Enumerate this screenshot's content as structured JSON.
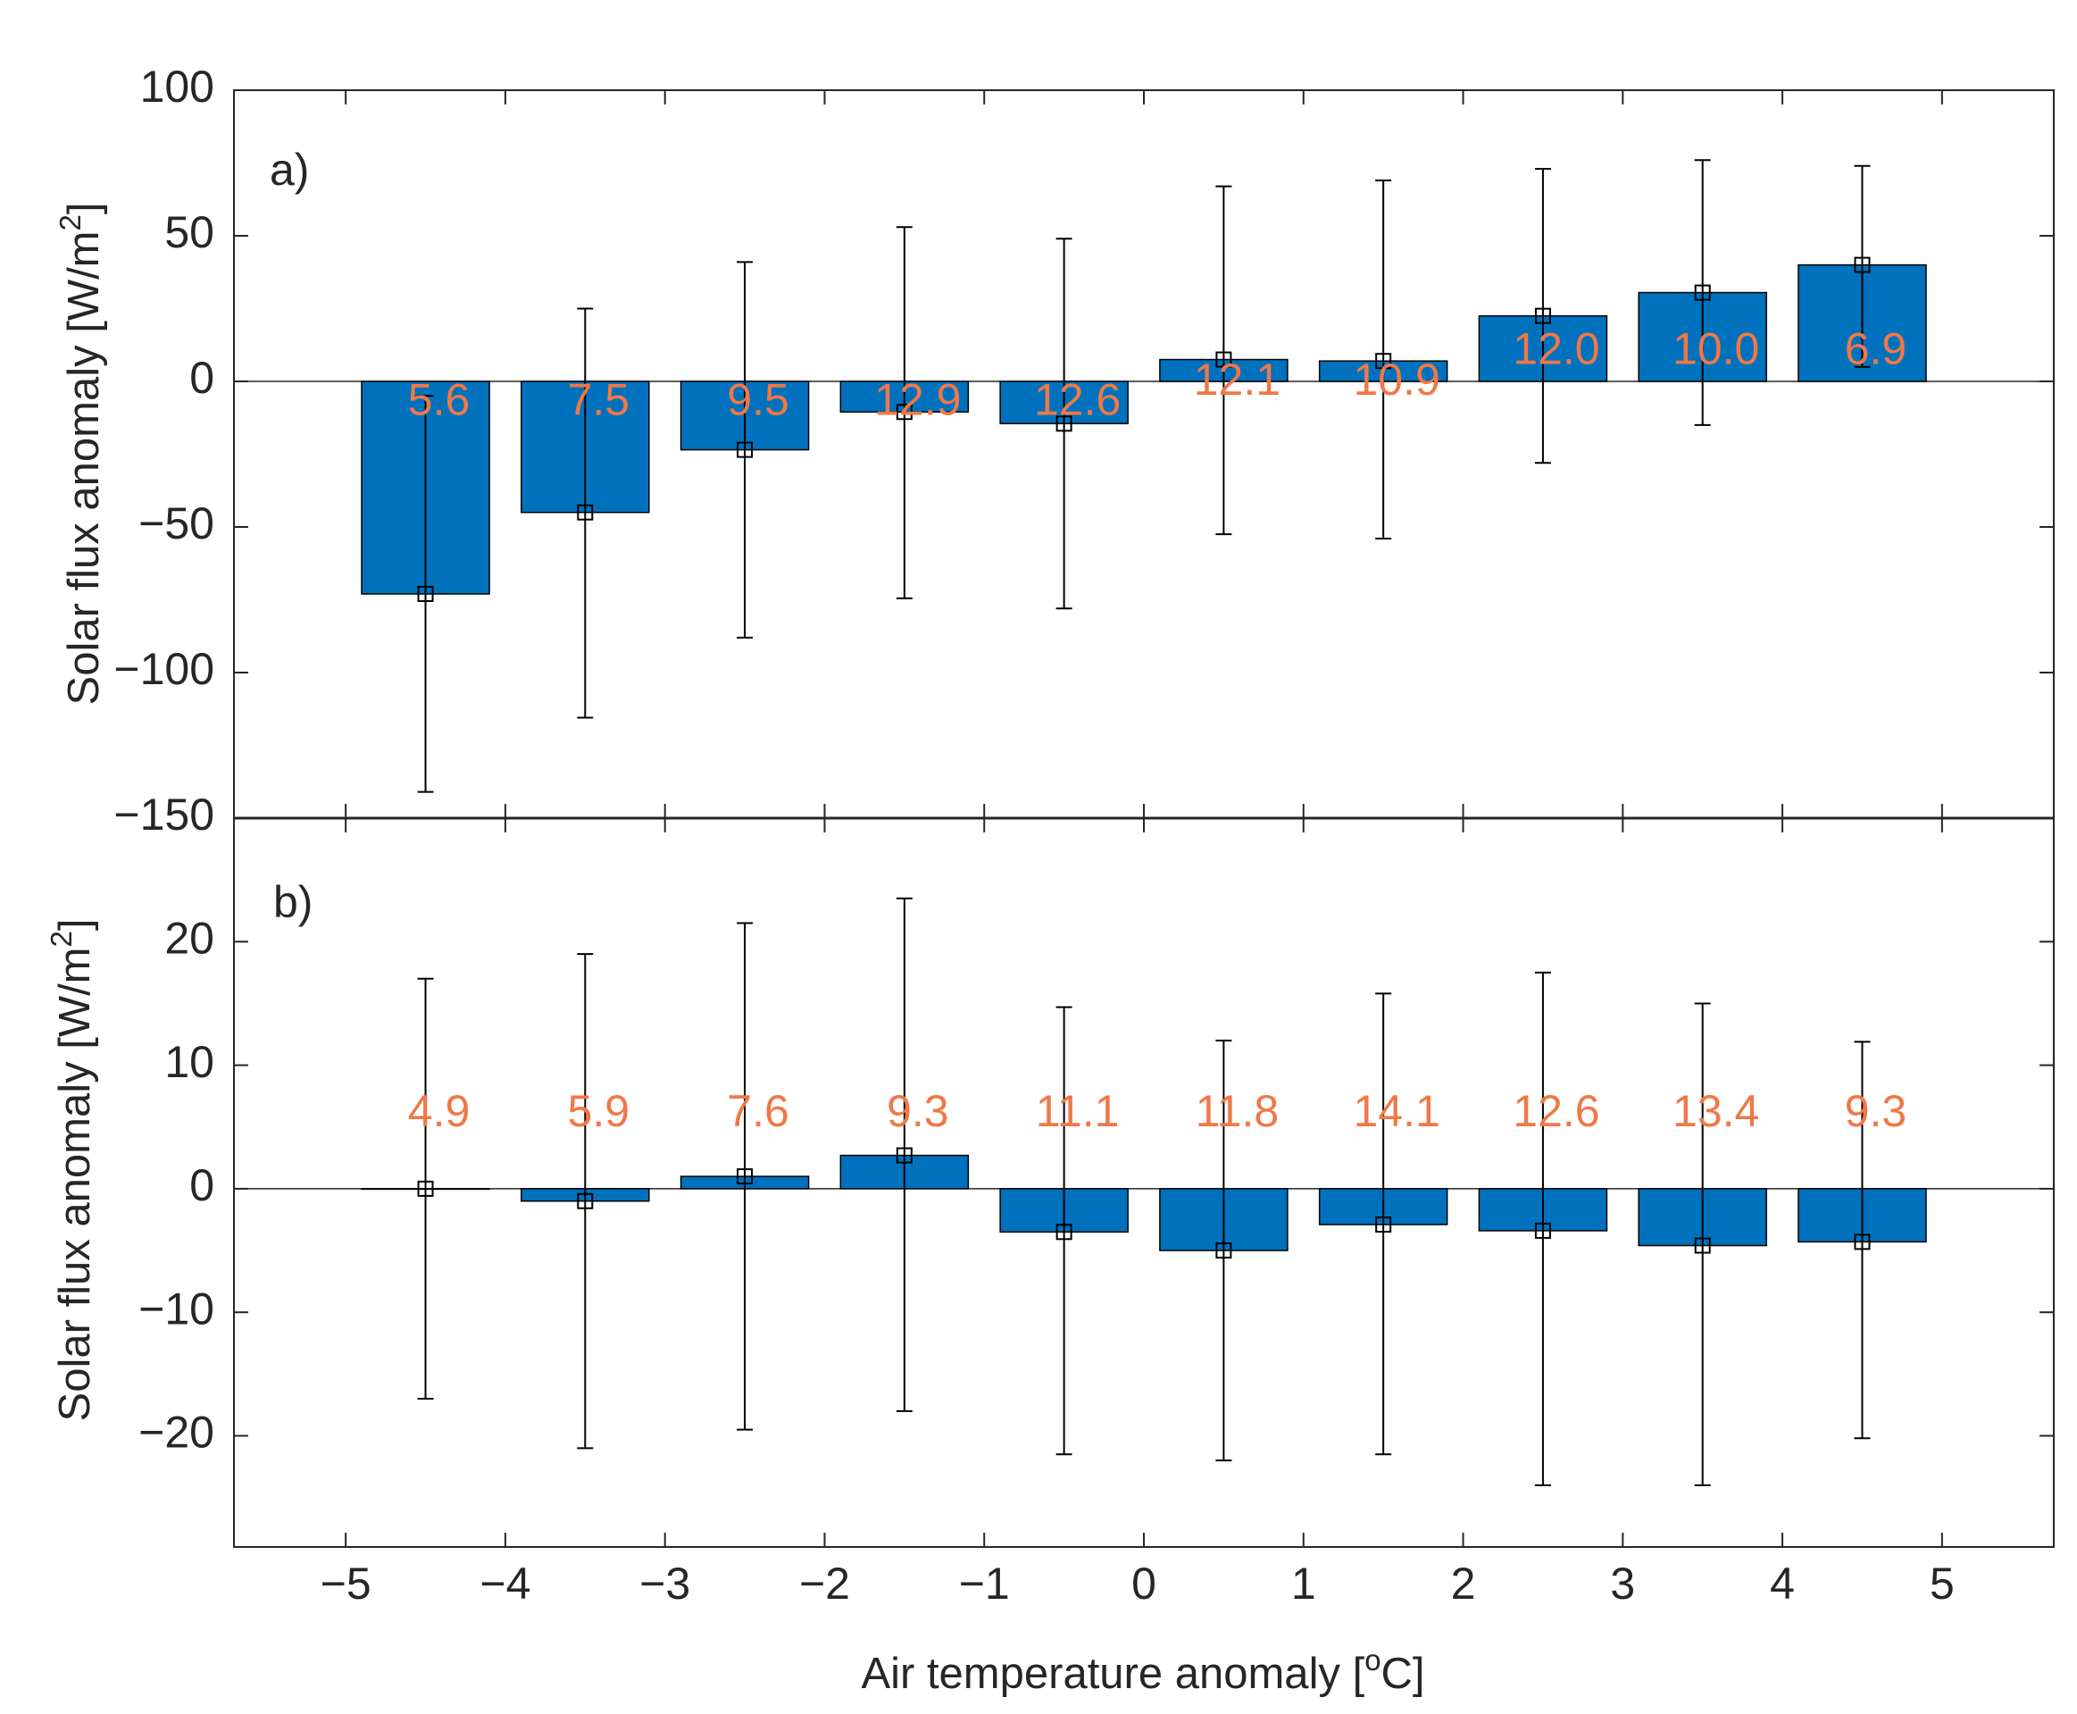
{
  "colors": {
    "bar": "#0072BD",
    "count": "#F07846",
    "axis": "#262626"
  },
  "chart_data": [
    {
      "type": "bar",
      "panel_label": "a)",
      "ylabel": "Solar flux anomaly [W/m",
      "ylabel_sup": "2",
      "ylabel_end": "]",
      "ylim": [
        -150,
        100
      ],
      "yticks": [
        -150,
        -100,
        -50,
        0,
        50,
        100
      ],
      "ytick_labels": [
        "−150",
        "−100",
        "−50",
        "0",
        "50",
        "100"
      ],
      "x": [
        -4.5,
        -3.5,
        -2.5,
        -1.5,
        -0.5,
        0.5,
        1.5,
        2.5,
        3.5,
        4.5
      ],
      "values": [
        -73,
        -45,
        -23.5,
        -10.5,
        -14.5,
        7.5,
        7,
        22.5,
        30.5,
        40
      ],
      "error_low": [
        -141,
        -115.5,
        -88,
        -74.5,
        -78,
        -52.5,
        -54,
        -28,
        -15,
        5
      ],
      "error_high": [
        -5,
        25,
        41,
        53,
        49,
        67,
        69,
        73,
        76,
        74
      ],
      "count_labels": [
        "5.6",
        "7.5",
        "9.5",
        "12.9",
        "12.6",
        "12.1",
        "10.9",
        "12.0",
        "10.0",
        "6.9"
      ],
      "count_label_y": [
        -7.5,
        -7.5,
        -7.5,
        -7.5,
        -7.5,
        -0.5,
        -0.5,
        10,
        10,
        10
      ]
    },
    {
      "type": "bar",
      "panel_label": "b)",
      "ylabel": "Solar flux anomaly [W/m",
      "ylabel_sup": "2",
      "ylabel_end": "]",
      "ylim": [
        -29,
        30
      ],
      "yticks": [
        -20,
        -10,
        0,
        10,
        20
      ],
      "ytick_labels": [
        "−20",
        "−10",
        "0",
        "10",
        "20"
      ],
      "xlim": [
        -5.7,
        5.7
      ],
      "xticks": [
        -5,
        -4,
        -3,
        -2,
        -1,
        0,
        1,
        2,
        3,
        4,
        5
      ],
      "xtick_labels": [
        "−5",
        "−4",
        "−3",
        "−2",
        "−1",
        "0",
        "1",
        "2",
        "3",
        "4",
        "5"
      ],
      "xlabel": "Air temperature anomaly [",
      "xlabel_sup": "o",
      "xlabel_end": "C]",
      "x": [
        -4.5,
        -3.5,
        -2.5,
        -1.5,
        -0.5,
        0.5,
        1.5,
        2.5,
        3.5,
        4.5
      ],
      "values": [
        0,
        -1,
        1,
        2.7,
        -3.5,
        -5,
        -2.9,
        -3.4,
        -4.6,
        -4.3
      ],
      "error_low": [
        -17,
        -21,
        -19.5,
        -18,
        -21.5,
        -22,
        -21.5,
        -24,
        -24,
        -20.2
      ],
      "error_high": [
        17,
        19,
        21.5,
        23.5,
        14.7,
        12,
        15.8,
        17.5,
        15,
        11.9
      ],
      "count_labels": [
        "4.9",
        "5.9",
        "7.6",
        "9.3",
        "11.1",
        "11.8",
        "14.1",
        "12.6",
        "13.4",
        "9.3"
      ],
      "count_label_y": [
        6,
        6,
        6,
        6,
        6,
        6,
        6,
        6,
        6,
        6
      ]
    }
  ]
}
